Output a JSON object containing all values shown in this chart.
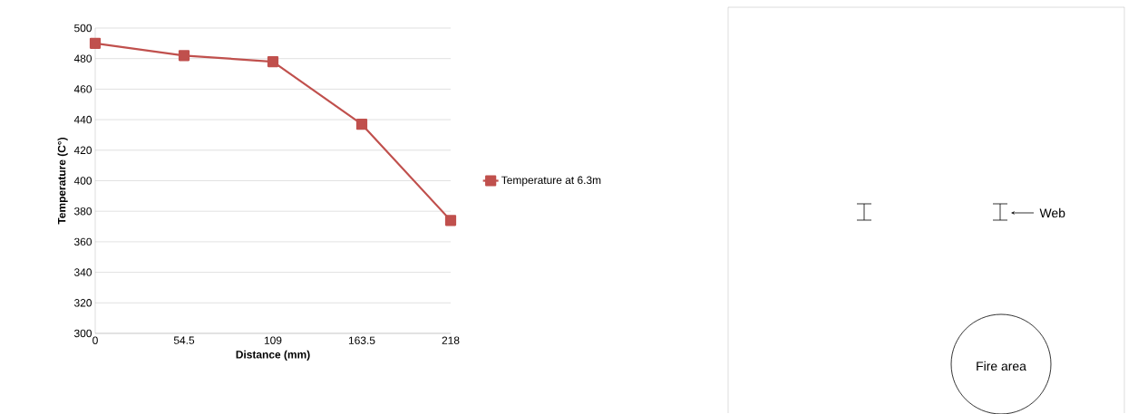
{
  "chart_data": [
    {
      "type": "line",
      "xlabel": "Distance (mm)",
      "ylabel": "Temperature (C°)",
      "x": [
        0,
        54.5,
        109,
        163.5,
        218
      ],
      "series": [
        {
          "name": "Temperature at 6.3m",
          "color": "#c0504d",
          "values": [
            490,
            482,
            478,
            437,
            374
          ]
        }
      ],
      "xlim": [
        0,
        218
      ],
      "xticks": [
        0,
        54.5,
        109,
        163.5,
        218
      ],
      "ylim": [
        300,
        500
      ],
      "yticks": [
        300,
        320,
        340,
        360,
        380,
        400,
        420,
        440,
        460,
        480,
        500
      ],
      "grid": "y",
      "legend": "right",
      "marker": "square",
      "line_style": "solid"
    },
    {
      "type": "other",
      "annotations": [
        "Web",
        "Fire area"
      ]
    }
  ]
}
